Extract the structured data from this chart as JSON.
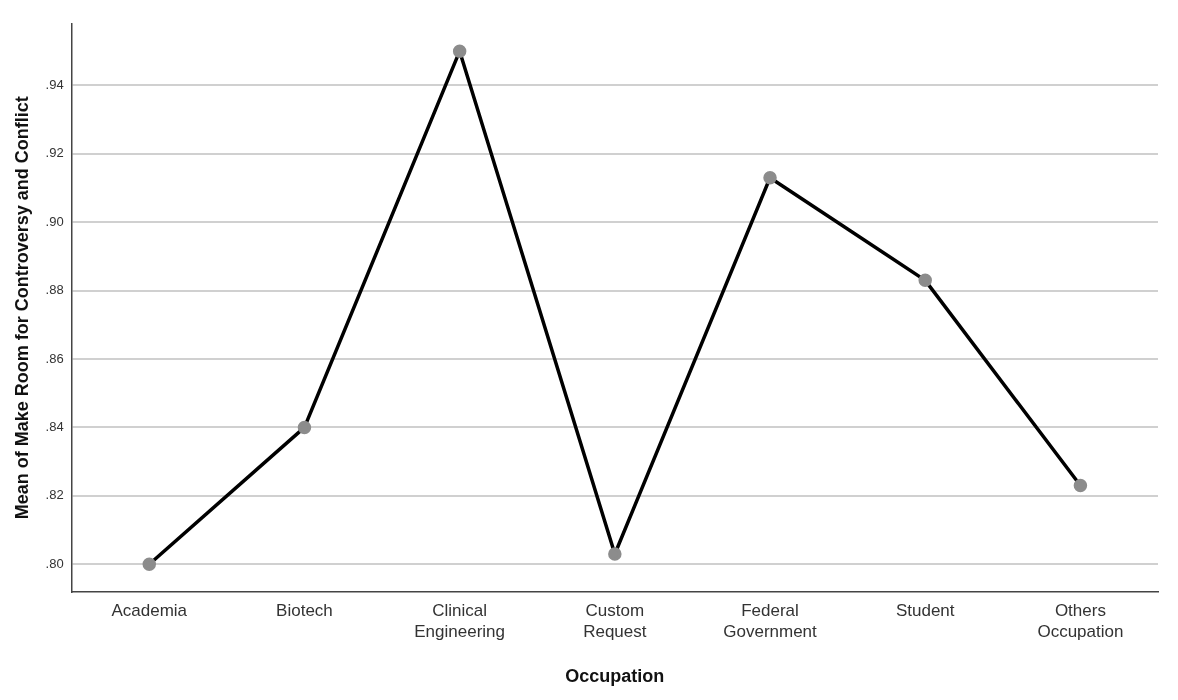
{
  "chart_data": {
    "type": "line",
    "xlabel": "Occupation",
    "ylabel": "Mean of Make Room for Controversy and Conflict",
    "categories": [
      "Academia",
      "Biotech",
      "Clinical Engineering",
      "Custom Request",
      "Federal Government",
      "Student",
      "Others Occupation"
    ],
    "series": [
      {
        "color": "#000000",
        "values": [
          0.8,
          0.84,
          0.95,
          0.803,
          0.913,
          0.883,
          0.823
        ]
      }
    ],
    "ylim": [
      0.792,
      0.958
    ],
    "yticks": [
      {
        "value": 0.8,
        "label": ".80"
      },
      {
        "value": 0.82,
        "label": ".82"
      },
      {
        "value": 0.84,
        "label": ".84"
      },
      {
        "value": 0.86,
        "label": ".86"
      },
      {
        "value": 0.88,
        "label": ".88"
      },
      {
        "value": 0.9,
        "label": ".90"
      },
      {
        "value": 0.92,
        "label": ".92"
      },
      {
        "value": 0.94,
        "label": ".94"
      }
    ],
    "grid": "y",
    "marker": "circle",
    "line_style": "solid",
    "legend": false
  }
}
